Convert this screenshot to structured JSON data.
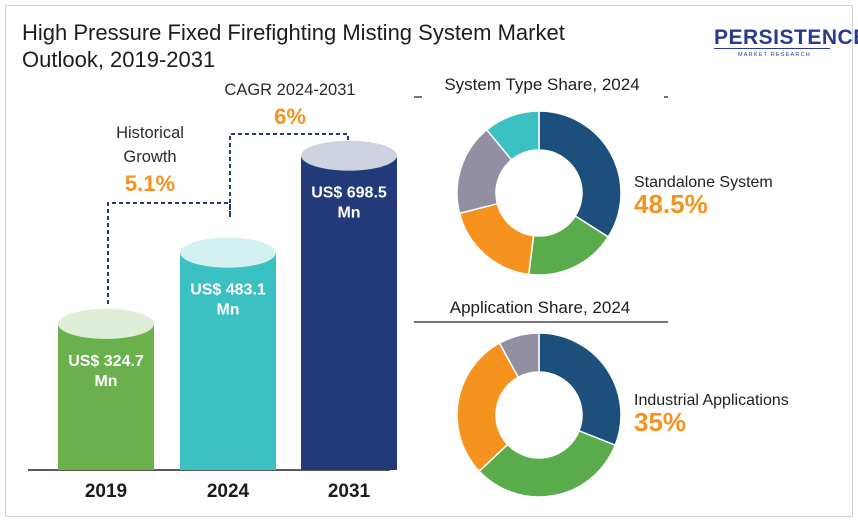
{
  "title_line1": "High Pressure Fixed Firefighting Misting System Market",
  "title_line2": "Outlook, 2019-2031",
  "logo": {
    "main": "PERSISTENCE",
    "sub": "MARKET RESEARCH",
    "color": "#2a3b8f"
  },
  "colors": {
    "bar_2019": "#6ab04c",
    "bar_2024": "#3cc1c2",
    "bar_2031": "#22397a",
    "accent": "#f6921e",
    "connector": "#22397a",
    "donut_blue": "#1d4f7c",
    "donut_green": "#5aab4c",
    "donut_orange": "#f6921e",
    "donut_gray": "#928fa3",
    "donut_teal": "#3cc1c2"
  },
  "chart_data": [
    {
      "type": "bar",
      "title": "High Pressure Fixed Firefighting Misting System Market Outlook, 2019-2031",
      "categories": [
        "2019",
        "2024",
        "2031"
      ],
      "values": [
        324.7,
        483.1,
        698.5
      ],
      "value_labels": [
        [
          "US$ 324.7",
          "Mn"
        ],
        [
          "US$ 483.1",
          "Mn"
        ],
        [
          "US$ 698.5",
          "Mn"
        ]
      ],
      "unit": "US$ Mn",
      "annotations": [
        {
          "label_lines": [
            "Historical",
            "Growth"
          ],
          "value": "5.1%"
        },
        {
          "label_lines": [
            "CAGR 2024-2031"
          ],
          "value": "6%"
        }
      ]
    },
    {
      "type": "pie",
      "title": "System Type Share, 2024",
      "highlight_label": "Standalone System",
      "highlight_value": "48.5%",
      "slices": [
        {
          "value": 34,
          "color": "#1d4f7c"
        },
        {
          "value": 18,
          "color": "#5aab4c"
        },
        {
          "value": 19,
          "color": "#f6921e"
        },
        {
          "value": 18,
          "color": "#928fa3"
        },
        {
          "value": 11,
          "color": "#3cc1c2"
        }
      ]
    },
    {
      "type": "pie",
      "title": "Application Share, 2024",
      "highlight_label": "Industrial Applications",
      "highlight_value": "35%",
      "slices": [
        {
          "value": 31,
          "color": "#1d4f7c"
        },
        {
          "value": 32,
          "color": "#5aab4c"
        },
        {
          "value": 29,
          "color": "#f6921e"
        },
        {
          "value": 8,
          "color": "#928fa3"
        }
      ]
    }
  ]
}
